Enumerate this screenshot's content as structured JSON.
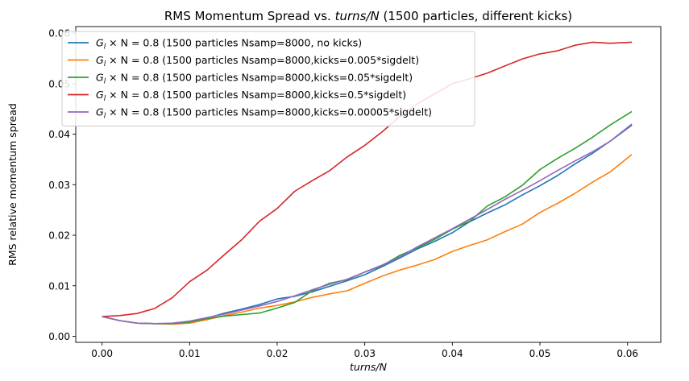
{
  "chart_data": {
    "type": "line",
    "title": "RMS Momentum Spread vs. turns/N (1500 particles, different kicks)",
    "xlabel": "turns/N",
    "ylabel": "RMS relative momentum spread",
    "xlim": [
      -0.003,
      0.0638
    ],
    "ylim": [
      -0.0012,
      0.0613
    ],
    "x_ticks": [
      0.0,
      0.01,
      0.02,
      0.03,
      0.04,
      0.05,
      0.06
    ],
    "x_tick_labels": [
      "0.00",
      "0.01",
      "0.02",
      "0.03",
      "0.04",
      "0.05",
      "0.06"
    ],
    "y_ticks": [
      0.0,
      0.01,
      0.02,
      0.03,
      0.04,
      0.05,
      0.06
    ],
    "y_tick_labels": [
      "0.00",
      "0.01",
      "0.02",
      "0.03",
      "0.04",
      "0.05",
      "0.06"
    ],
    "grid": false,
    "legend_position": "upper-left",
    "x": [
      0.0,
      0.002,
      0.004,
      0.006,
      0.008,
      0.01,
      0.012,
      0.014,
      0.016,
      0.018,
      0.02,
      0.022,
      0.024,
      0.026,
      0.028,
      0.03,
      0.032,
      0.034,
      0.036,
      0.038,
      0.04,
      0.042,
      0.044,
      0.046,
      0.048,
      0.05,
      0.052,
      0.054,
      0.056,
      0.058,
      0.0605
    ],
    "series": [
      {
        "name": "G_l × N = 0.8  (1500 particles Nsamp=8000, no kicks)",
        "color": "#1f77b4",
        "values": [
          0.0039,
          0.0031,
          0.0026,
          0.0025,
          0.0025,
          0.0029,
          0.0036,
          0.0046,
          0.0054,
          0.0063,
          0.0074,
          0.0079,
          0.0088,
          0.0099,
          0.011,
          0.0122,
          0.0138,
          0.0155,
          0.0173,
          0.0188,
          0.0205,
          0.0227,
          0.0244,
          0.026,
          0.028,
          0.0298,
          0.0318,
          0.0341,
          0.0362,
          0.0386,
          0.0418
        ]
      },
      {
        "name": "G_l × N = 0.8  (1500 particles Nsamp=8000,kicks=0.005*sigdelt)",
        "color": "#ff7f0e",
        "values": [
          0.0039,
          0.0031,
          0.0026,
          0.0025,
          0.0024,
          0.0026,
          0.0033,
          0.0041,
          0.0048,
          0.0056,
          0.0061,
          0.0068,
          0.0077,
          0.0084,
          0.009,
          0.0105,
          0.0119,
          0.0131,
          0.0141,
          0.0152,
          0.0168,
          0.018,
          0.0191,
          0.0207,
          0.0222,
          0.0245,
          0.0263,
          0.0283,
          0.0305,
          0.0325,
          0.036
        ]
      },
      {
        "name": "G_l × N = 0.8  (1500 particles Nsamp=8000,kicks=0.05*sigdelt)",
        "color": "#2ca02c",
        "values": [
          0.0039,
          0.0031,
          0.0026,
          0.0025,
          0.0025,
          0.0028,
          0.0035,
          0.004,
          0.0043,
          0.0046,
          0.0056,
          0.0067,
          0.009,
          0.0105,
          0.0112,
          0.0127,
          0.014,
          0.016,
          0.0175,
          0.0192,
          0.0212,
          0.0228,
          0.0258,
          0.0276,
          0.0299,
          0.033,
          0.0352,
          0.0372,
          0.0394,
          0.0418,
          0.0445
        ]
      },
      {
        "name": "G_l × N = 0.8  (1500 particles Nsamp=8000,kicks=0.5*sigdelt)",
        "color": "#d62728",
        "values": [
          0.0039,
          0.0041,
          0.0045,
          0.0055,
          0.0076,
          0.0108,
          0.0131,
          0.0162,
          0.0192,
          0.0228,
          0.0253,
          0.0287,
          0.0308,
          0.0328,
          0.0355,
          0.0378,
          0.0405,
          0.0435,
          0.046,
          0.048,
          0.05,
          0.051,
          0.0521,
          0.0535,
          0.0549,
          0.0559,
          0.0565,
          0.0576,
          0.0582,
          0.058,
          0.0582
        ]
      },
      {
        "name": "G_l × N = 0.8  (1500 particles Nsamp=8000,kicks=0.00005*sigdelt)",
        "color": "#9467bd",
        "values": [
          0.0039,
          0.0031,
          0.0026,
          0.0025,
          0.0026,
          0.003,
          0.0037,
          0.0044,
          0.0052,
          0.006,
          0.0069,
          0.008,
          0.0092,
          0.0103,
          0.0113,
          0.0127,
          0.0141,
          0.0157,
          0.0177,
          0.0195,
          0.0213,
          0.0232,
          0.0251,
          0.0271,
          0.0289,
          0.0308,
          0.0328,
          0.0347,
          0.0365,
          0.0386,
          0.042
        ]
      }
    ]
  }
}
